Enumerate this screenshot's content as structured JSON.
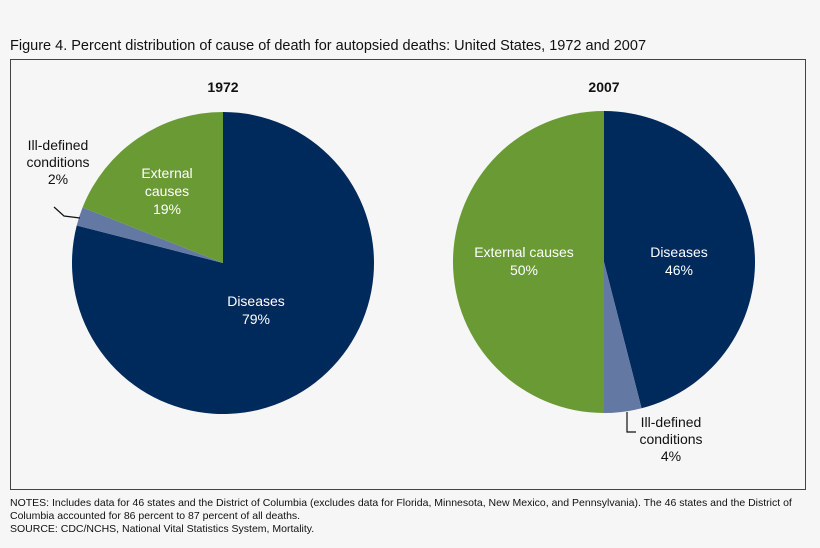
{
  "title": "Figure 4. Percent distribution of cause of death for autopsied deaths: United States, 1972 and 2007",
  "chart_data": [
    {
      "type": "pie",
      "title": "1972",
      "slices": [
        {
          "label": "Diseases",
          "value": 79,
          "value_label": "79%",
          "color": "#002a5c"
        },
        {
          "label": "Ill-defined conditions",
          "value": 2,
          "value_label": "2%",
          "color": "#6378a2"
        },
        {
          "label": "External causes",
          "value": 19,
          "value_label": "19%",
          "color": "#6a9a34"
        }
      ]
    },
    {
      "type": "pie",
      "title": "2007",
      "slices": [
        {
          "label": "Diseases",
          "value": 46,
          "value_label": "46%",
          "color": "#002a5c"
        },
        {
          "label": "Ill-defined conditions",
          "value": 4,
          "value_label": "4%",
          "color": "#6378a2"
        },
        {
          "label": "External causes",
          "value": 50,
          "value_label": "50%",
          "color": "#6a9a34"
        }
      ]
    }
  ],
  "labels_1972": {
    "diseases": [
      "Diseases",
      "79%"
    ],
    "external": [
      "External",
      "causes",
      "19%"
    ],
    "ill": [
      "Ill-defined",
      "conditions",
      "2%"
    ]
  },
  "labels_2007": {
    "diseases": [
      "Diseases",
      "46%"
    ],
    "external": [
      "External causes",
      "50%"
    ],
    "ill": [
      "Ill-defined",
      "conditions",
      "4%"
    ]
  },
  "notes": "NOTES: Includes data for 46 states and the District of Columbia (excludes data for Florida, Minnesota, New Mexico, and Pennsylvania). The 46 states and the District of Columbia accounted for 86 percent to 87 percent of all deaths.",
  "source": "SOURCE: CDC/NCHS, National Vital Statistics System, Mortality."
}
